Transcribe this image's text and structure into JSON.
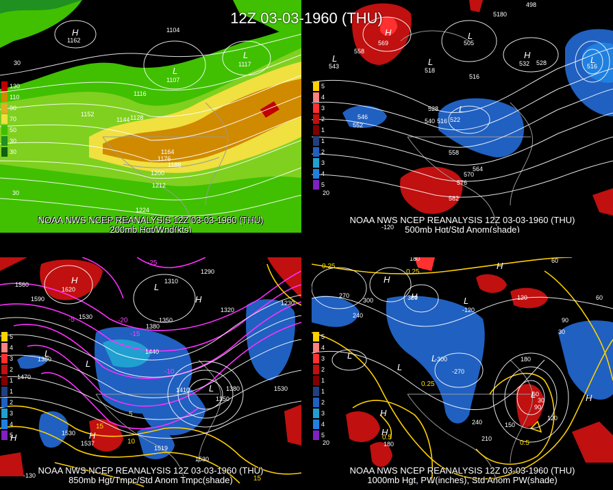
{
  "main_title": "12Z 03-03-1960 (THU)",
  "panels": [
    {
      "id": "p1",
      "caption_line1": "NOAA NWS NCEP REANALYSIS 12Z 03-03-1960 (THU)",
      "caption_line2": "200mb Hgt/Wnd(kts)",
      "legend": [
        {
          "label": "130",
          "color": "#c00000"
        },
        {
          "label": "110",
          "color": "#d08a00"
        },
        {
          "label": "90",
          "color": "#e0b020"
        },
        {
          "label": "70",
          "color": "#f0e040"
        },
        {
          "label": "50",
          "color": "#40c000"
        },
        {
          "label": "30",
          "color": "#209020"
        },
        {
          "label": "30",
          "color": "#106010"
        }
      ],
      "labels": [
        "1104",
        "1162",
        "1107",
        "1117",
        "1116",
        "1152",
        "1144",
        "1128",
        "1164",
        "1176",
        "1188",
        "1200",
        "1212",
        "1224",
        "30",
        "30"
      ]
    },
    {
      "id": "p2",
      "caption_line1": "NOAA NWS NCEP REANALYSIS 12Z 03-03-1960 (THU)",
      "caption_line2": "500mb Hgt/Std Anom(shade)",
      "legend": [
        {
          "label": "5",
          "color": "#ffd000"
        },
        {
          "label": "4",
          "color": "#ff8080"
        },
        {
          "label": "3",
          "color": "#ff3030"
        },
        {
          "label": "2",
          "color": "#c01010"
        },
        {
          "label": "1",
          "color": "#800000"
        },
        {
          "label": "1",
          "color": "#204080"
        },
        {
          "label": "2",
          "color": "#2060c0"
        },
        {
          "label": "3",
          "color": "#20a0d0"
        },
        {
          "label": "4",
          "color": "#2080e0"
        },
        {
          "label": "5",
          "color": "#8020c0"
        }
      ],
      "labels": [
        "558",
        "569",
        "505",
        "518",
        "516",
        "5180",
        "498",
        "532",
        "528",
        "516",
        "543",
        "546",
        "552",
        "528",
        "540",
        "522",
        "516",
        "558",
        "564",
        "570",
        "576",
        "582",
        "20",
        "-120"
      ]
    },
    {
      "id": "p3",
      "caption_line1": "NOAA NWS NCEP REANALYSIS 12Z 03-03-1960 (THU)",
      "caption_line2": "850mb Hgt/Tmpc/Std Anom Tmpc(shade)",
      "legend": [
        {
          "label": "5",
          "color": "#ffd000"
        },
        {
          "label": "4",
          "color": "#ff8080"
        },
        {
          "label": "3",
          "color": "#ff3030"
        },
        {
          "label": "2",
          "color": "#c01010"
        },
        {
          "label": "1",
          "color": "#800000"
        },
        {
          "label": "1",
          "color": "#204080"
        },
        {
          "label": "2",
          "color": "#2060c0"
        },
        {
          "label": "3",
          "color": "#20a0d0"
        },
        {
          "label": "4",
          "color": "#2080e0"
        },
        {
          "label": "5",
          "color": "#8020c0"
        }
      ],
      "labels": [
        "1560",
        "1590",
        "1620",
        "1530",
        "1310",
        "1380",
        "1290",
        "1350",
        "1380",
        "1440",
        "1470",
        "1410",
        "1320",
        "1350",
        "1380",
        "1230",
        "1530",
        "1530",
        "1537",
        "1519",
        "1530",
        "-25",
        "-20",
        "-15",
        "-10",
        "-5",
        "5",
        "10",
        "15",
        "-130",
        "15"
      ]
    },
    {
      "id": "p4",
      "caption_line1": "NOAA NWS NCEP REANALYSIS 12Z 03-03-1960 (THU)",
      "caption_line2": "1000mb Hgt, PW(inches), Std Anom PW(shade)",
      "legend": [
        {
          "label": "5",
          "color": "#ffd000"
        },
        {
          "label": "4",
          "color": "#ff8080"
        },
        {
          "label": "3",
          "color": "#ff3030"
        },
        {
          "label": "2",
          "color": "#c01010"
        },
        {
          "label": "1",
          "color": "#800000"
        },
        {
          "label": "1",
          "color": "#204080"
        },
        {
          "label": "2",
          "color": "#2060c0"
        },
        {
          "label": "3",
          "color": "#20a0d0"
        },
        {
          "label": "4",
          "color": "#2080e0"
        },
        {
          "label": "5",
          "color": "#8020c0"
        }
      ],
      "labels": [
        "0.25",
        "180",
        "0.25",
        "60",
        "270",
        "300",
        "360",
        "120",
        "240",
        "90",
        "30",
        "60",
        "-120",
        "-270",
        "-300",
        "180",
        "0.25",
        "0.5",
        "180",
        "150",
        "240",
        "210",
        "60",
        "30",
        "90",
        "120",
        "0.5",
        "20"
      ]
    }
  ]
}
